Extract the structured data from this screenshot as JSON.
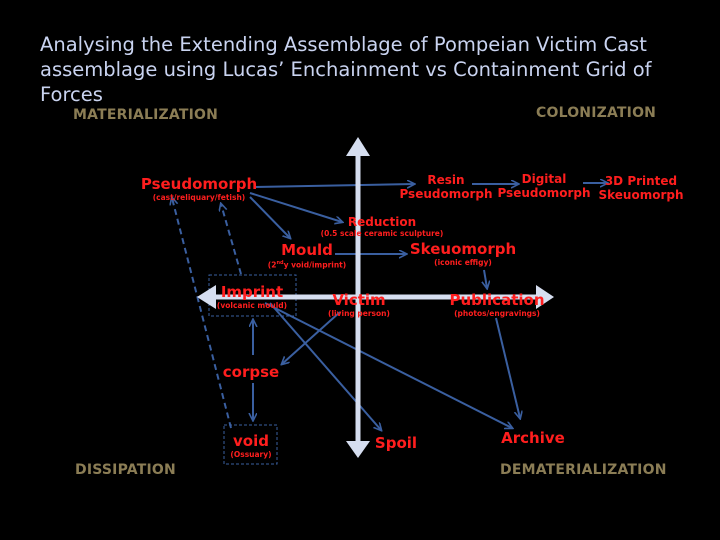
{
  "title": "Analysing the Extending Assemblage of Pompeian Victim Cast assemblage using Lucas’ Enchainment vs Containment Grid of Forces",
  "quadrants": {
    "top_left": "MATERIALIZATION",
    "top_right": "COLONIZATION",
    "bottom_left": "DISSIPATION",
    "bottom_right": "DEMATERIALIZATION"
  },
  "nodes": {
    "pseudomorph": {
      "label": "Pseudomorph",
      "sub": "(cast/reliquary/fetish)"
    },
    "resin": {
      "line1": "Resin",
      "line2": "Pseudomorph"
    },
    "digital": {
      "line1": "Digital",
      "line2": "Pseudomorph"
    },
    "printed": {
      "line1": "3D Printed",
      "line2": "Skeuomorph"
    },
    "reduction": {
      "label": "Reduction",
      "sub": "(0.5 scale ceramic sculpture)"
    },
    "mould": {
      "label": "Mould",
      "sub_pre": "(2",
      "sub_sup": "nd",
      "sub_post": "y void/imprint)"
    },
    "skeuomorph": {
      "label": "Skeuomorph",
      "sub": "(iconic effigy)"
    },
    "imprint": {
      "label": "Imprint",
      "sub": "(volcanic mould)"
    },
    "victim": {
      "label": "Victim",
      "sub": "(living person)"
    },
    "publication": {
      "label": "Publication",
      "sub": "(photos/engravings)"
    },
    "corpse": {
      "label": "corpse"
    },
    "void": {
      "label": "void",
      "sub": "(Ossuary)"
    },
    "spoil": {
      "label": "Spoil"
    },
    "archive": {
      "label": "Archive"
    }
  },
  "colors": {
    "axis": "#d6def0",
    "arrow": "#3a5fa0",
    "node": "#ff1e1e",
    "quadrant": "#8b7d55",
    "title": "#c9d3f0"
  }
}
